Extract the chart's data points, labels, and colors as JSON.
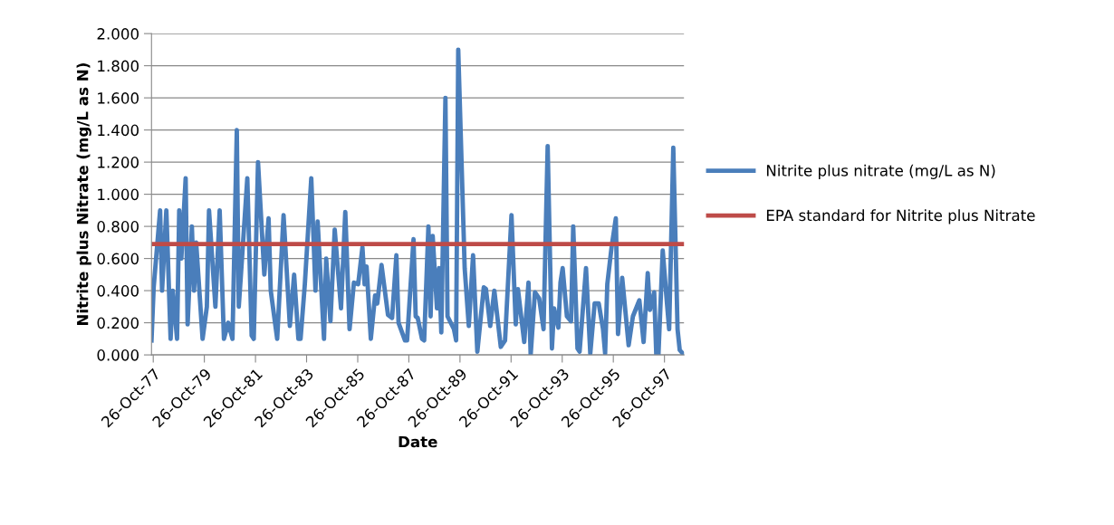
{
  "chart_data": {
    "type": "line",
    "xlabel": "Date",
    "ylabel": "Nitrite plus Nitrate (mg/L as N)",
    "x": [
      "1977-10",
      "1977-11",
      "1978-02",
      "1978-03",
      "1978-05",
      "1978-07",
      "1978-08",
      "1978-10",
      "1978-11",
      "1978-12",
      "1979-02",
      "1979-03",
      "1979-05",
      "1979-06",
      "1979-07",
      "1979-10",
      "1979-12",
      "1980-01",
      "1980-04",
      "1980-06",
      "1980-08",
      "1980-10",
      "1980-12",
      "1981-02",
      "1981-03",
      "1981-04",
      "1981-07",
      "1981-09",
      "1981-10",
      "1981-12",
      "1982-03",
      "1982-05",
      "1982-06",
      "1982-09",
      "1982-12",
      "1983-03",
      "1983-05",
      "1983-07",
      "1983-08",
      "1983-10",
      "1984-01",
      "1984-03",
      "1984-04",
      "1984-07",
      "1984-08",
      "1984-10",
      "1984-12",
      "1985-03",
      "1985-05",
      "1985-07",
      "1985-09",
      "1985-11",
      "1986-01",
      "1986-02",
      "1986-03",
      "1986-05",
      "1986-07",
      "1986-08",
      "1986-10",
      "1987-01",
      "1987-03",
      "1987-05",
      "1987-06",
      "1987-09",
      "1987-10",
      "1988-01",
      "1988-02",
      "1988-03",
      "1988-05",
      "1988-06",
      "1988-08",
      "1988-09",
      "1988-10",
      "1988-12",
      "1989-01",
      "1989-02",
      "1989-04",
      "1989-05",
      "1989-08",
      "1989-09",
      "1989-10",
      "1990-01",
      "1990-03",
      "1990-05",
      "1990-07",
      "1990-10",
      "1990-11",
      "1991-01",
      "1991-03",
      "1991-06",
      "1991-08",
      "1991-11",
      "1992-01",
      "1992-02",
      "1992-05",
      "1992-07",
      "1992-08",
      "1992-10",
      "1992-12",
      "1993-02",
      "1993-04",
      "1993-06",
      "1993-07",
      "1993-09",
      "1993-10",
      "1993-11",
      "1994-01",
      "1994-03",
      "1994-04",
      "1994-06",
      "1994-07",
      "1994-10",
      "1994-12",
      "1995-02",
      "1995-04",
      "1995-06",
      "1995-07",
      "1995-08",
      "1995-10",
      "1995-12",
      "1996-01",
      "1996-03",
      "1996-06",
      "1996-08",
      "1996-11",
      "1997-01",
      "1997-03",
      "1997-04",
      "1997-06",
      "1997-07",
      "1997-08",
      "1997-10",
      "1997-12",
      "1998-01",
      "1998-03",
      "1998-05",
      "1998-06",
      "1998-08"
    ],
    "series": [
      {
        "name": "Nitrite plus nitrate (mg/L as N)",
        "color": "#4a7ebb",
        "values": [
          0.09,
          0.42,
          0.9,
          0.4,
          0.9,
          0.1,
          0.4,
          0.1,
          0.9,
          0.6,
          1.1,
          0.19,
          0.8,
          0.4,
          0.7,
          0.1,
          0.3,
          0.9,
          0.3,
          0.9,
          0.1,
          0.2,
          0.1,
          1.4,
          0.3,
          0.5,
          1.1,
          0.12,
          0.1,
          1.2,
          0.5,
          0.85,
          0.4,
          0.1,
          0.87,
          0.18,
          0.5,
          0.1,
          0.1,
          0.44,
          1.1,
          0.4,
          0.83,
          0.1,
          0.6,
          0.21,
          0.78,
          0.29,
          0.89,
          0.16,
          0.45,
          0.44,
          0.67,
          0.44,
          0.55,
          0.1,
          0.37,
          0.32,
          0.56,
          0.25,
          0.23,
          0.62,
          0.2,
          0.09,
          0.09,
          0.72,
          0.24,
          0.23,
          0.1,
          0.09,
          0.8,
          0.24,
          0.74,
          0.29,
          0.54,
          0.14,
          1.6,
          0.24,
          0.16,
          0.09,
          1.9,
          0.54,
          0.18,
          0.62,
          0.02,
          0.42,
          0.41,
          0.18,
          0.4,
          0.05,
          0.09,
          0.87,
          0.19,
          0.41,
          0.08,
          0.45,
          0.0,
          0.39,
          0.35,
          0.16,
          1.3,
          0.04,
          0.29,
          0.17,
          0.45,
          0.54,
          0.24,
          0.21,
          0.8,
          0.04,
          0.02,
          0.54,
          0.01,
          0.32,
          0.32,
          0.16,
          0.01,
          0.44,
          0.67,
          0.85,
          0.13,
          0.48,
          0.06,
          0.24,
          0.34,
          0.08,
          0.51,
          0.28,
          0.39,
          0.0,
          0.0,
          0.65,
          0.32,
          0.16,
          1.29,
          0.16,
          0.03,
          0.0
        ]
      }
    ],
    "ref_lines": [
      {
        "axis": "y",
        "value": 0.69,
        "label": "EPA standard for Nitrite plus Nitrate",
        "color": "#be4b48"
      }
    ],
    "xlim": [
      "1977-10",
      "1998-08"
    ],
    "xticks": [
      {
        "value": "1977-10-26",
        "label": "26-Oct-77"
      },
      {
        "value": "1979-10-26",
        "label": "26-Oct-79"
      },
      {
        "value": "1981-10-26",
        "label": "26-Oct-81"
      },
      {
        "value": "1983-10-26",
        "label": "26-Oct-83"
      },
      {
        "value": "1985-10-26",
        "label": "26-Oct-85"
      },
      {
        "value": "1987-10-26",
        "label": "26-Oct-87"
      },
      {
        "value": "1989-10-26",
        "label": "26-Oct-89"
      },
      {
        "value": "1991-10-26",
        "label": "26-Oct-91"
      },
      {
        "value": "1993-10-26",
        "label": "26-Oct-93"
      },
      {
        "value": "1995-10-26",
        "label": "26-Oct-95"
      },
      {
        "value": "1997-10-26",
        "label": "26-Oct-97"
      }
    ],
    "ylim": [
      0,
      2
    ],
    "yticks": [
      {
        "value": 0,
        "label": "0.000"
      },
      {
        "value": 0.2,
        "label": "0.200"
      },
      {
        "value": 0.4,
        "label": "0.400"
      },
      {
        "value": 0.6,
        "label": "0.600"
      },
      {
        "value": 0.8,
        "label": "0.800"
      },
      {
        "value": 1.0,
        "label": "1.000"
      },
      {
        "value": 1.2,
        "label": "1.200"
      },
      {
        "value": 1.4,
        "label": "1.400"
      },
      {
        "value": 1.6,
        "label": "1.600"
      },
      {
        "value": 1.8,
        "label": "1.800"
      },
      {
        "value": 2.0,
        "label": "2.000"
      }
    ],
    "grid": "y",
    "legend": "right",
    "marker": "none",
    "line_style": "solid"
  }
}
